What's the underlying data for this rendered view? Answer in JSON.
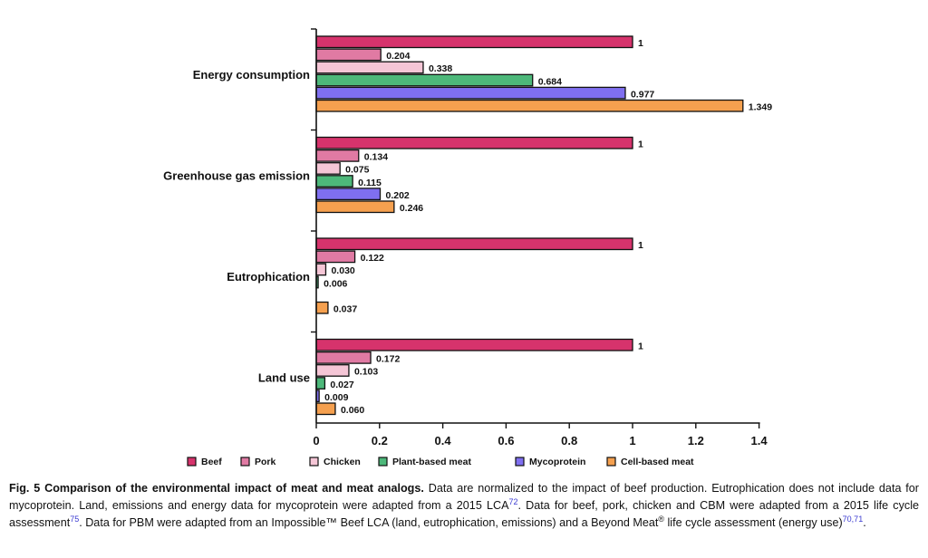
{
  "chart_data": {
    "type": "bar",
    "orientation": "horizontal",
    "categories": [
      "Energy consumption",
      "Greenhouse gas emission",
      "Eutrophication",
      "Land use"
    ],
    "series": [
      {
        "name": "Beef",
        "color": "#d6336c",
        "values": [
          1,
          1,
          1,
          1
        ],
        "labels": [
          "1",
          "1",
          "1",
          "1"
        ]
      },
      {
        "name": "Pork",
        "color": "#e07aa3",
        "values": [
          0.204,
          0.134,
          0.122,
          0.172
        ],
        "labels": [
          "0.204",
          "0.134",
          "0.122",
          "0.172"
        ]
      },
      {
        "name": "Chicken",
        "color": "#f5c6d6",
        "values": [
          0.338,
          0.075,
          0.03,
          0.103
        ],
        "labels": [
          "0.338",
          "0.075",
          "0.030",
          "0.103"
        ]
      },
      {
        "name": "Plant-based meat",
        "color": "#4db87a",
        "values": [
          0.684,
          0.115,
          0.006,
          0.027
        ],
        "labels": [
          "0.684",
          "0.115",
          "0.006",
          "0.027"
        ]
      },
      {
        "name": "Mycoprotein",
        "color": "#7f6ff0",
        "values": [
          0.977,
          0.202,
          null,
          0.009
        ],
        "labels": [
          "0.977",
          "0.202",
          "",
          "0.009"
        ]
      },
      {
        "name": "Cell-based meat",
        "color": "#f5a04f",
        "values": [
          1.349,
          0.246,
          0.037,
          0.06
        ],
        "labels": [
          "1.349",
          "0.246",
          "0.037",
          "0.060"
        ]
      }
    ],
    "xlim": [
      0,
      1.4
    ],
    "xticks": [
      "0",
      "0.2",
      "0.4",
      "0.6",
      "0.8",
      "1",
      "1.2",
      "1.4"
    ],
    "xtick_values": [
      0,
      0.2,
      0.4,
      0.6,
      0.8,
      1,
      1.2,
      1.4
    ],
    "legend_position": "bottom",
    "grid": false
  },
  "caption": {
    "title": "Fig. 5 Comparison of the environmental impact of meat and meat analogs.",
    "p1": " Data are normalized to the impact of beef production. Eutrophication does not include data for mycoprotein. Land, emissions and energy data for mycoprotein were adapted from a 2015 LCA",
    "ref1": "72",
    "p2": ". Data for beef, pork, chicken and CBM were adapted from a 2015 life cycle assessment",
    "ref2": "75",
    "p3": ". Data for PBM were adapted from an Impossible™ Beef LCA (land, eutrophication, emissions) and a Beyond Meat",
    "reg": "®",
    "p4": " life cycle assessment (energy use)",
    "ref3": "70,71",
    "p5": "."
  }
}
